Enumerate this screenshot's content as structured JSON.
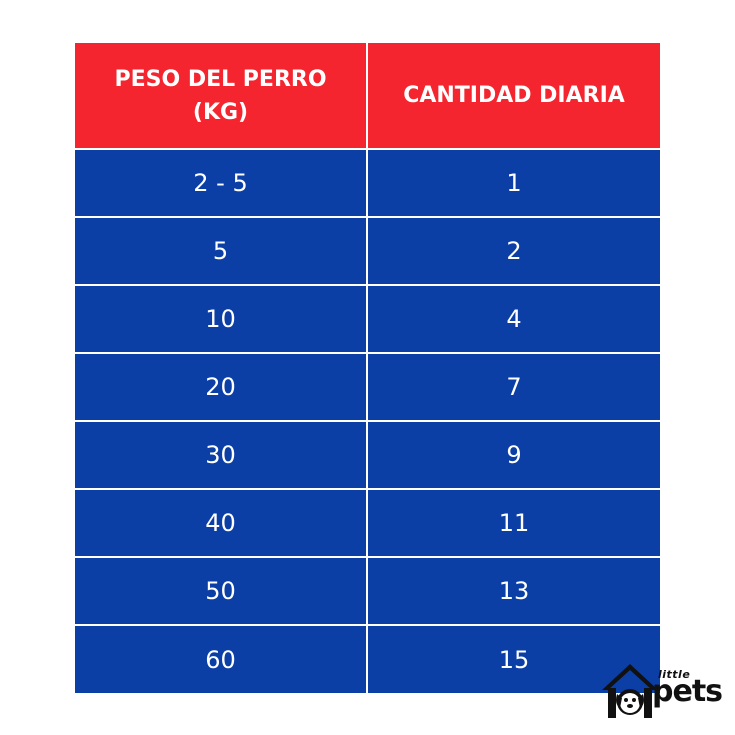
{
  "colors": {
    "header_bg": "#f5252f",
    "row_bg": "#0b3fa6",
    "grid_lines": "#ffffff",
    "text": "#ffffff",
    "logo": "#111111"
  },
  "table": {
    "headers": [
      "PESO DEL PERRO (KG)",
      "CANTIDAD DIARIA"
    ],
    "rows": [
      [
        "2 - 5",
        "1"
      ],
      [
        "5",
        "2"
      ],
      [
        "10",
        "4"
      ],
      [
        "20",
        "7"
      ],
      [
        "30",
        "9"
      ],
      [
        "40",
        "11"
      ],
      [
        "50",
        "13"
      ],
      [
        "60",
        "15"
      ]
    ]
  },
  "logo": {
    "small_text": "little",
    "big_text": "pets",
    "icon": "house-dog-icon"
  }
}
